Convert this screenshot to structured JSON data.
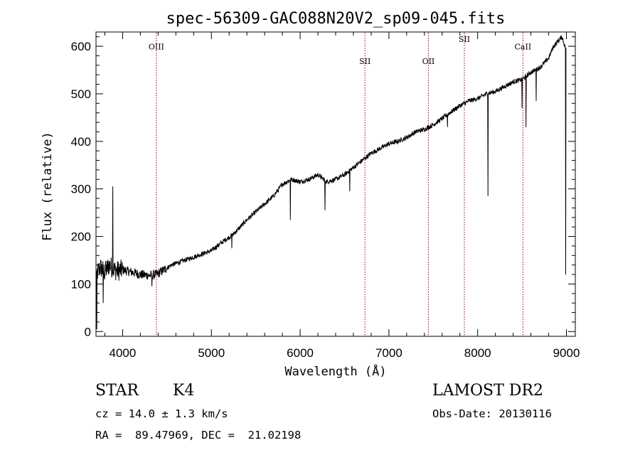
{
  "chart_data": {
    "type": "line",
    "title": "spec-56309-GAC088N20V2_sp09-045.fits",
    "xlabel": "Wavelength (Å)",
    "ylabel": "Flux (relative)",
    "xlim": [
      3700,
      9100
    ],
    "ylim": [
      -10,
      630
    ],
    "xticks": [
      4000,
      5000,
      6000,
      7000,
      8000,
      9000
    ],
    "yticks": [
      0,
      100,
      200,
      300,
      400,
      500,
      600
    ],
    "xtick_labels": [
      "4000",
      "5000",
      "6000",
      "7000",
      "8000",
      "9000"
    ],
    "ytick_labels": [
      "0",
      "100",
      "200",
      "300",
      "400",
      "500",
      "600"
    ],
    "line_color": "#000000",
    "marker_color": "#990000",
    "spectrum": {
      "x": [
        3700,
        3750,
        3800,
        3850,
        3900,
        3950,
        4000,
        4100,
        4200,
        4300,
        4380,
        4450,
        4550,
        4700,
        4850,
        5000,
        5100,
        5250,
        5400,
        5550,
        5700,
        5800,
        5900,
        6000,
        6100,
        6200,
        6300,
        6400,
        6500,
        6600,
        6700,
        6800,
        6900,
        7000,
        7100,
        7200,
        7300,
        7400,
        7500,
        7600,
        7700,
        7800,
        7900,
        8000,
        8100,
        8200,
        8300,
        8400,
        8500,
        8600,
        8700,
        8800,
        8850,
        8900,
        8950,
        9000
      ],
      "y": [
        120,
        135,
        125,
        140,
        130,
        128,
        130,
        125,
        120,
        118,
        120,
        128,
        140,
        150,
        160,
        170,
        185,
        205,
        235,
        260,
        285,
        310,
        320,
        315,
        320,
        330,
        315,
        320,
        330,
        345,
        360,
        375,
        385,
        395,
        400,
        408,
        420,
        425,
        435,
        448,
        462,
        475,
        485,
        490,
        500,
        505,
        515,
        525,
        530,
        545,
        555,
        575,
        598,
        610,
        620,
        590
      ],
      "features": [
        {
          "x": 3710,
          "y": 5
        },
        {
          "x": 3780,
          "y": 60
        },
        {
          "x": 3890,
          "y": 305
        },
        {
          "x": 4330,
          "y": 95
        },
        {
          "x": 5230,
          "y": 175
        },
        {
          "x": 5890,
          "y": 235
        },
        {
          "x": 6280,
          "y": 255
        },
        {
          "x": 6560,
          "y": 295
        },
        {
          "x": 7660,
          "y": 430
        },
        {
          "x": 8115,
          "y": 285
        },
        {
          "x": 8500,
          "y": 470
        },
        {
          "x": 8545,
          "y": 430
        },
        {
          "x": 8660,
          "y": 485
        },
        {
          "x": 8992,
          "y": 120
        }
      ]
    },
    "lines": [
      {
        "label": "OIII",
        "x": 4380,
        "label_y": 593
      },
      {
        "label": "SII",
        "x": 6730,
        "label_y": 563
      },
      {
        "label": "OII",
        "x": 7445,
        "label_y": 563
      },
      {
        "label": "SII",
        "x": 7850,
        "label_y": 609
      },
      {
        "label": "CaII",
        "x": 8510,
        "label_y": 593
      }
    ]
  },
  "info": {
    "class_label": "STAR",
    "subclass": "K4",
    "survey": "LAMOST DR2",
    "cz": "cz = 14.0 ± 1.3 km/s",
    "obs_date": "Obs-Date: 20130116",
    "coords": "RA =  89.47969, DEC =  21.02198"
  }
}
